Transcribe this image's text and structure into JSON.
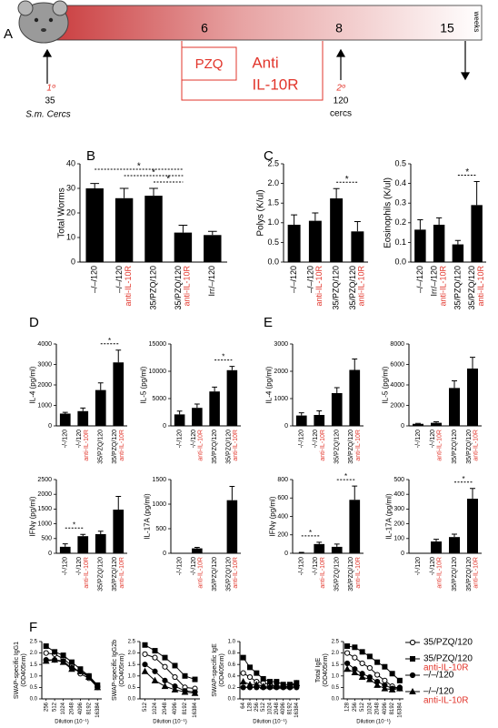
{
  "panels": [
    "A",
    "B",
    "C",
    "D",
    "E",
    "F"
  ],
  "note_color": "#e2352b",
  "timeline": {
    "weeks": [
      6,
      8,
      15
    ],
    "unit": "weeks",
    "treatment_1": "PZQ",
    "treatment_2": [
      "Anti",
      "IL-10R"
    ],
    "infection_1": {
      "label": "1º",
      "dose": 35,
      "cercariae": "S.m. Cercs"
    },
    "infection_2": {
      "label": "2º",
      "dose": 120,
      "cercariae": "cercs"
    }
  },
  "chart_data": [
    {
      "type": "bar",
      "ylabel": "Total Worms",
      "categories": [
        "–/–/120",
        "–/–/120",
        "35/PZQ/120",
        "35/PZQ/120",
        "Irr/–/120"
      ],
      "sublabels": [
        null,
        "anti-IL-10R",
        null,
        "anti-IL-10R",
        null
      ],
      "values": [
        30,
        26,
        27,
        12,
        11
      ],
      "errors": [
        2,
        4,
        3,
        3,
        1.5
      ],
      "color": "#000000",
      "ylim": [
        0,
        40
      ],
      "yticks": [
        0,
        10,
        20,
        30,
        40
      ],
      "significance": [
        {
          "from": 0,
          "to": 3,
          "label": "*"
        },
        {
          "from": 1,
          "to": 3,
          "label": "*"
        },
        {
          "from": 2,
          "to": 3,
          "label": "*"
        }
      ]
    },
    {
      "type": "bar",
      "ylabel": "Polys (K/ul)",
      "categories": [
        "–/–/120",
        "–/–/120",
        "35/PZQ/120",
        "35/PZQ/120"
      ],
      "sublabels": [
        null,
        "anti-IL-10R",
        null,
        "anti-IL-10R"
      ],
      "values": [
        0.95,
        1.05,
        1.62,
        0.78
      ],
      "errors": [
        0.25,
        0.2,
        0.25,
        0.25
      ],
      "color": "#000000",
      "ylim": [
        0,
        2.5
      ],
      "yticks": [
        {
          "value": 0,
          "label": "0.0"
        },
        0.5,
        {
          "value": 1,
          "label": "1.0"
        },
        1.5,
        {
          "value": 2,
          "label": "2.0"
        },
        2.5
      ],
      "significance": [
        {
          "from": 2,
          "to": 3,
          "label": "*"
        }
      ]
    },
    {
      "type": "bar",
      "ylabel": "Eosinophils (K/ul)",
      "categories": [
        "–/–/120",
        "Irr/–/120",
        "35/PZQ/120",
        "35/PZQ/120"
      ],
      "sublabels": [
        null,
        "anti-IL-10R",
        null,
        "anti-IL-10R"
      ],
      "values": [
        0.165,
        0.19,
        0.09,
        0.29
      ],
      "errors": [
        0.05,
        0.035,
        0.02,
        0.12
      ],
      "color": "#000000",
      "ylim": [
        0,
        0.5
      ],
      "yticks": [
        {
          "value": 0,
          "label": "0.0"
        },
        0.1,
        0.2,
        0.3,
        0.4,
        0.5
      ],
      "significance": [
        {
          "from": 2,
          "to": 3,
          "label": "*"
        }
      ]
    },
    {
      "type": "bar",
      "ylabel": "IL-4 (pg/ml)",
      "categories": [
        "-/-/120",
        "-/-/120",
        "35/PZQ/120",
        "35/PZQ/120"
      ],
      "sublabels": [
        null,
        "anti-IL-10R",
        null,
        "anti-IL-10R"
      ],
      "values": [
        600,
        720,
        1750,
        3100
      ],
      "errors": [
        60,
        150,
        350,
        600
      ],
      "color": "#000000",
      "ylim": [
        0,
        4000
      ],
      "yticks": [
        0,
        1000,
        2000,
        3000,
        4000
      ],
      "significance": [
        {
          "from": 2,
          "to": 3,
          "label": "*"
        }
      ]
    },
    {
      "type": "bar",
      "ylabel": "IL-5 (pg/ml)",
      "categories": [
        "-/-/120",
        "-/-/120",
        "35/PZQ/120",
        "35/PZQ/120"
      ],
      "sublabels": [
        null,
        "anti-IL-10R",
        null,
        "anti-IL-10R"
      ],
      "values": [
        2100,
        3300,
        6300,
        10200
      ],
      "errors": [
        600,
        700,
        800,
        700
      ],
      "color": "#000000",
      "ylim": [
        0,
        15000
      ],
      "yticks": [
        0,
        5000,
        10000,
        15000
      ],
      "significance": [
        {
          "from": 2,
          "to": 3,
          "label": "*"
        }
      ]
    },
    {
      "type": "bar",
      "ylabel": "IFNγ (pg/ml)",
      "categories": [
        "-/-/120",
        "-/-/120",
        "35/PZQ/120",
        "35/PZQ/120"
      ],
      "sublabels": [
        null,
        "anti-IL-10R",
        null,
        "anti-IL-10R"
      ],
      "values": [
        220,
        580,
        650,
        1480
      ],
      "errors": [
        100,
        60,
        100,
        450
      ],
      "color": "#000000",
      "ylim": [
        0,
        2500
      ],
      "yticks": [
        0,
        500,
        1000,
        1500,
        2000,
        2500
      ],
      "significance": [
        {
          "from": 0,
          "to": 1,
          "label": "*"
        }
      ]
    },
    {
      "type": "bar",
      "ylabel": "IL-17A (pg/ml)",
      "categories": [
        "-/-/120",
        "-/-/120",
        "35/PZQ/120",
        "35/PZQ/120"
      ],
      "sublabels": [
        null,
        "anti-IL-10R",
        null,
        "anti-IL-10R"
      ],
      "values": [
        0,
        100,
        0,
        1080
      ],
      "errors": [
        0,
        20,
        0,
        280
      ],
      "color": "#000000",
      "ylim": [
        0,
        1500
      ],
      "yticks": [
        0,
        500,
        1000,
        1500
      ]
    },
    {
      "type": "bar",
      "ylabel": "IL-4 (pg/ml)",
      "categories": [
        "-/-/120",
        "-/-/120",
        "35/PZQ/120",
        "35/PZQ/120"
      ],
      "sublabels": [
        null,
        "anti-IL-10R",
        null,
        "anti-IL-10R"
      ],
      "values": [
        380,
        400,
        1200,
        2050
      ],
      "errors": [
        100,
        150,
        200,
        400
      ],
      "color": "#000000",
      "ylim": [
        0,
        3000
      ],
      "yticks": [
        0,
        1000,
        2000,
        3000
      ]
    },
    {
      "type": "bar",
      "ylabel": "IL-5 (pg/ml)",
      "categories": [
        "-/-/120",
        "-/-/120",
        "35/PZQ/120",
        "35/PZQ/120"
      ],
      "sublabels": [
        null,
        "anti-IL-10R",
        null,
        "anti-IL-10R"
      ],
      "values": [
        200,
        300,
        3700,
        5600
      ],
      "errors": [
        50,
        100,
        700,
        1100
      ],
      "color": "#000000",
      "ylim": [
        0,
        8000
      ],
      "yticks": [
        0,
        2000,
        4000,
        6000,
        8000
      ]
    },
    {
      "type": "bar",
      "ylabel": "IFNγ (pg/ml)",
      "categories": [
        "-/-/120",
        "-/-/120",
        "35/PZQ/120",
        "35/PZQ/120"
      ],
      "sublabels": [
        null,
        "anti-IL-10R",
        null,
        "anti-IL-10R"
      ],
      "values": [
        5,
        100,
        70,
        580
      ],
      "errors": [
        5,
        20,
        30,
        150
      ],
      "color": "#000000",
      "ylim": [
        0,
        800
      ],
      "yticks": [
        0,
        200,
        400,
        600,
        800
      ],
      "significance": [
        {
          "from": 0,
          "to": 1,
          "label": "*"
        },
        {
          "from": 2,
          "to": 3,
          "label": "*"
        }
      ]
    },
    {
      "type": "bar",
      "ylabel": "IL-17A (pg/ml)",
      "categories": [
        "-/-/120",
        "-/-/120",
        "35/PZQ/120",
        "35/PZQ/120"
      ],
      "sublabels": [
        null,
        "anti-IL-10R",
        null,
        "anti-IL-10R"
      ],
      "values": [
        0,
        80,
        110,
        370
      ],
      "errors": [
        0,
        15,
        20,
        70
      ],
      "color": "#000000",
      "ylim": [
        0,
        500
      ],
      "yticks": [
        0,
        100,
        200,
        300,
        400,
        500
      ],
      "significance": [
        {
          "from": 2,
          "to": 3,
          "label": "*"
        }
      ]
    },
    {
      "type": "line",
      "ylabel": [
        "SWAP-specific IgG1",
        "(OD405nm)"
      ],
      "xlabel": "Dilution (10⁻¹)",
      "categories": [
        "256",
        "512",
        "1024",
        "2048",
        "4096",
        "8192",
        "16384"
      ],
      "ylim": [
        0,
        2.5
      ],
      "yticks": [
        {
          "value": 0,
          "label": "0.0"
        },
        0.5,
        {
          "value": 1,
          "label": "1.0"
        },
        1.5,
        {
          "value": 2,
          "label": "2.0"
        },
        2.5
      ],
      "legend": "right",
      "series": [
        {
          "name": "35/PZQ/120",
          "marker": "open-circle",
          "color": "#000000",
          "values": [
            2.0,
            1.95,
            1.75,
            1.45,
            1.1,
            0.9,
            0.5
          ]
        },
        {
          "name": "35/PZQ/120",
          "note": "anti-IL-10R",
          "marker": "square",
          "color": "#000000",
          "values": [
            2.3,
            2.05,
            1.9,
            1.6,
            1.3,
            1.0,
            0.6
          ]
        },
        {
          "name": "–/–/120",
          "marker": "circle",
          "color": "#000000",
          "values": [
            1.7,
            1.7,
            1.65,
            1.35,
            1.2,
            1.0,
            0.55
          ]
        },
        {
          "name": "–/–/120",
          "note": "anti-IL-10R",
          "marker": "triangle",
          "color": "#000000",
          "values": [
            1.65,
            1.7,
            1.6,
            1.3,
            1.2,
            0.95,
            0.5
          ]
        }
      ]
    },
    {
      "type": "line",
      "ylabel": [
        "SWAP-specific IgG2b",
        "(OD405nm)"
      ],
      "xlabel": "Dilution (10⁻¹)",
      "categories": [
        "512",
        "1024",
        "2048",
        "4096",
        "8192",
        "16384"
      ],
      "ylim": [
        0,
        2.5
      ],
      "yticks": [
        {
          "value": 0,
          "label": "0.0"
        },
        0.5,
        {
          "value": 1,
          "label": "1.0"
        },
        1.5,
        {
          "value": 2,
          "label": "2.0"
        },
        2.5
      ],
      "series": [
        {
          "marker": "open-circle",
          "color": "#000000",
          "values": [
            1.95,
            1.8,
            1.4,
            0.95,
            0.5,
            0.45
          ]
        },
        {
          "marker": "square",
          "color": "#000000",
          "values": [
            2.35,
            2.1,
            1.8,
            1.45,
            1.0,
            0.85
          ]
        },
        {
          "marker": "circle",
          "color": "#000000",
          "values": [
            1.5,
            1.2,
            0.8,
            0.55,
            0.35,
            0.3
          ]
        },
        {
          "marker": "triangle",
          "color": "#000000",
          "values": [
            1.2,
            0.8,
            0.55,
            0.4,
            0.3,
            0.25
          ]
        }
      ]
    },
    {
      "type": "line",
      "ylabel": [
        "SWAP-specific IgE",
        "(OD405nm)"
      ],
      "xlabel": "Dilution (10⁻¹)",
      "categories": [
        "64",
        "128",
        "256",
        "512",
        "1024",
        "2048",
        "4096",
        "8192",
        "16384"
      ],
      "ylim": [
        0,
        1
      ],
      "yticks": [
        {
          "value": 0,
          "label": "0.0"
        },
        0.2,
        0.4,
        0.6,
        0.8,
        {
          "value": 1,
          "label": "1.0"
        }
      ],
      "series": [
        {
          "marker": "open-circle",
          "color": "#000000",
          "values": [
            0.45,
            0.38,
            0.3,
            0.28,
            0.25,
            0.22,
            0.22,
            0.2,
            0.22
          ]
        },
        {
          "marker": "square",
          "color": "#000000",
          "values": [
            0.72,
            0.55,
            0.45,
            0.35,
            0.3,
            0.3,
            0.25,
            0.25,
            0.28
          ]
        },
        {
          "marker": "circle",
          "color": "#000000",
          "values": [
            0.2,
            0.2,
            0.2,
            0.2,
            0.2,
            0.2,
            0.2,
            0.2,
            0.2
          ]
        },
        {
          "marker": "triangle",
          "color": "#000000",
          "values": [
            0.3,
            0.25,
            0.25,
            0.22,
            0.22,
            0.22,
            0.22,
            0.22,
            0.27
          ]
        }
      ]
    },
    {
      "type": "line",
      "ylabel": [
        "Total IgE",
        "(OD405nm)"
      ],
      "xlabel": "Dilution (10⁻¹)",
      "categories": [
        "128",
        "256",
        "512",
        "1024",
        "2048",
        "4096",
        "8192",
        "16384"
      ],
      "ylim": [
        0,
        2.5
      ],
      "yticks": [
        {
          "value": 0,
          "label": "0.0"
        },
        0.5,
        {
          "value": 1,
          "label": "1.0"
        },
        1.5,
        {
          "value": 2,
          "label": "2.0"
        },
        2.5
      ],
      "series": [
        {
          "marker": "open-circle",
          "color": "#000000",
          "values": [
            2.0,
            1.8,
            1.55,
            1.35,
            1.05,
            0.8,
            0.55,
            0.45
          ]
        },
        {
          "marker": "square",
          "color": "#000000",
          "values": [
            2.3,
            2.25,
            2.05,
            1.85,
            1.6,
            1.4,
            1.1,
            0.8
          ]
        },
        {
          "marker": "circle",
          "color": "#000000",
          "values": [
            1.55,
            1.3,
            1.1,
            0.95,
            0.75,
            0.6,
            0.45,
            0.5
          ]
        },
        {
          "marker": "triangle",
          "color": "#000000",
          "values": [
            1.3,
            1.15,
            0.95,
            0.85,
            0.6,
            0.45,
            0.4,
            0.45
          ]
        }
      ]
    }
  ]
}
